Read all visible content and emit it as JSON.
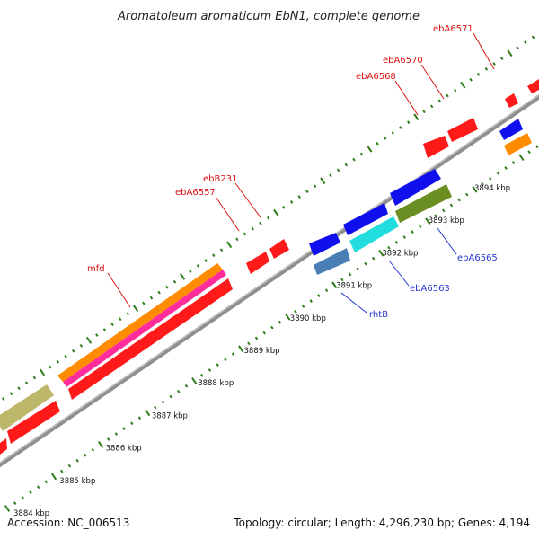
{
  "title": "Aromatoleum aromaticum EbN1, complete genome",
  "footer": {
    "accession": "Accession: NC_006513",
    "summary": "Topology: circular; Length: 4,296,230 bp; Genes: 4,194"
  },
  "colors": {
    "backbone": "#8f8f8f",
    "tick": "#2e7d1a",
    "red_label": "#dd1111",
    "blue_label": "#2233cc",
    "gene_red": "#ff1a1a",
    "gene_orange": "#ff8c00",
    "gene_magenta": "#ff2d9b",
    "gene_blue": "#1010ee",
    "gene_cyan": "#22dddd",
    "gene_olive": "#6b8e23",
    "gene_steel": "#4a7fb5",
    "gene_khaki": "#bdb76b"
  },
  "scale": {
    "unit": "kbp",
    "ticks": [
      {
        "kbp": 3884,
        "label": "3884 kbp"
      },
      {
        "kbp": 3885,
        "label": "3885 kbp"
      },
      {
        "kbp": 3886,
        "label": "3886 kbp"
      },
      {
        "kbp": 3887,
        "label": "3887 kbp"
      },
      {
        "kbp": 3888,
        "label": "3888 kbp"
      },
      {
        "kbp": 3889,
        "label": "3889 kbp"
      },
      {
        "kbp": 3890,
        "label": "3890 kbp"
      },
      {
        "kbp": 3891,
        "label": "3891 kbp"
      },
      {
        "kbp": 3892,
        "label": "3892 kbp"
      },
      {
        "kbp": 3893,
        "label": "3893 kbp"
      },
      {
        "kbp": 3894,
        "label": "3894 kbp"
      }
    ]
  },
  "gene_labels": [
    {
      "text": "ebA6571",
      "color": "red"
    },
    {
      "text": "ebA6570",
      "color": "red"
    },
    {
      "text": "ebA6568",
      "color": "red"
    },
    {
      "text": "ebB231",
      "color": "red"
    },
    {
      "text": "ebA6557",
      "color": "red"
    },
    {
      "text": "mfd",
      "color": "red"
    },
    {
      "text": "ebA6565",
      "color": "blue"
    },
    {
      "text": "ebA6563",
      "color": "blue"
    },
    {
      "text": "rhtB",
      "color": "blue"
    }
  ]
}
